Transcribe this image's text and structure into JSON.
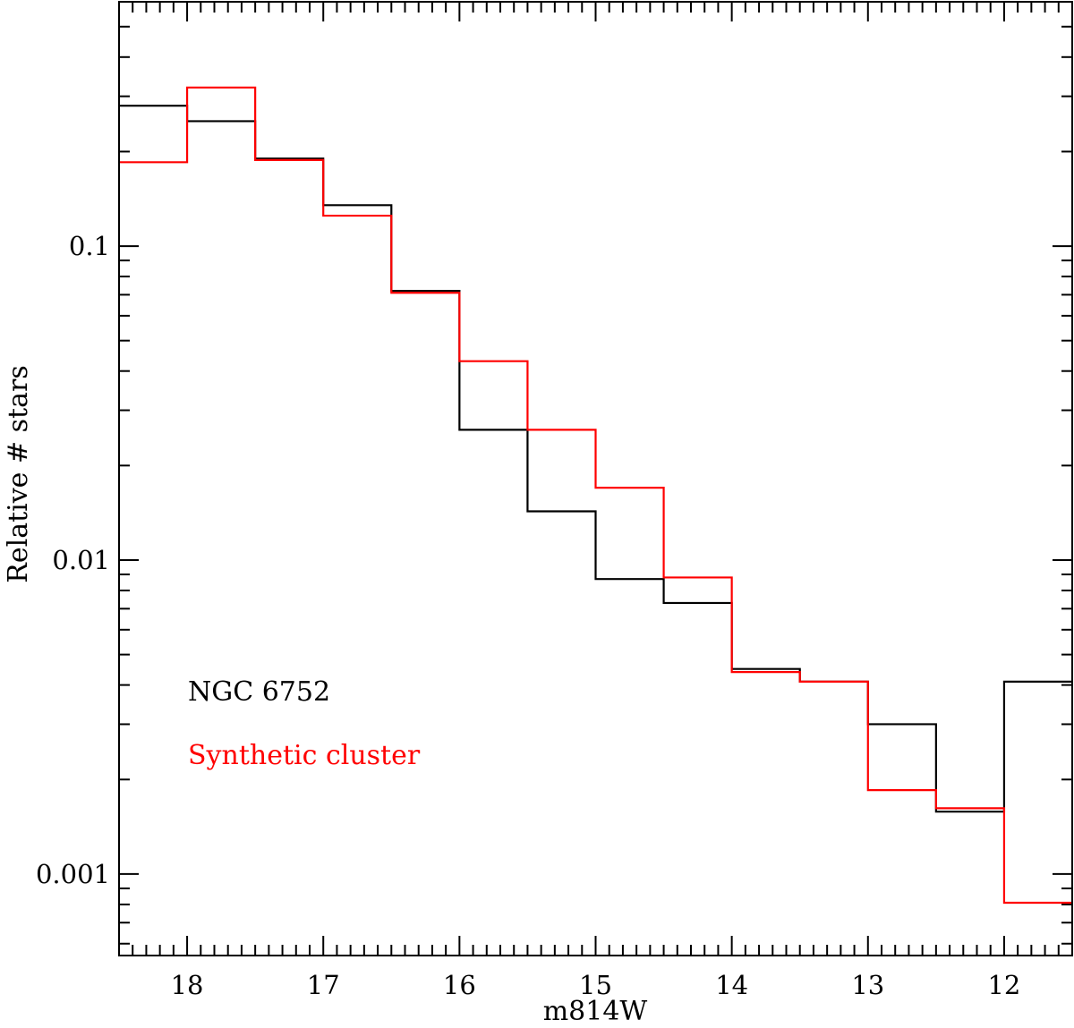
{
  "chart_data": {
    "type": "line",
    "step": true,
    "xlabel": "m814W",
    "ylabel": "Relative # stars",
    "xlim": [
      18.5,
      11.5
    ],
    "ylim": [
      0.00055,
      0.6
    ],
    "yscale": "log",
    "x_ticks": [
      18,
      17,
      16,
      15,
      14,
      13,
      12
    ],
    "x_tick_labels": [
      "18",
      "17",
      "16",
      "15",
      "14",
      "13",
      "12"
    ],
    "y_ticks": [
      0.1,
      0.01,
      0.001
    ],
    "y_tick_labels": [
      "0.1",
      "0.01",
      "0.001"
    ],
    "bin_edges": [
      18.5,
      18.0,
      17.5,
      17.0,
      16.5,
      16.0,
      15.5,
      15.0,
      14.5,
      14.0,
      13.5,
      13.0,
      12.5,
      12.0,
      11.5
    ],
    "series": [
      {
        "name": "NGC 6752",
        "color": "#000000",
        "values": [
          0.28,
          0.25,
          0.19,
          0.135,
          0.072,
          0.026,
          0.0143,
          0.0087,
          0.0073,
          0.0045,
          0.0041,
          0.003,
          0.00158,
          0.0041
        ]
      },
      {
        "name": "Synthetic cluster",
        "color": "#ff0000",
        "values": [
          0.185,
          0.32,
          0.188,
          0.125,
          0.071,
          0.043,
          0.026,
          0.017,
          0.0088,
          0.0044,
          0.0041,
          0.00185,
          0.00162,
          0.00081
        ]
      }
    ],
    "legend": [
      "NGC 6752",
      "Synthetic cluster"
    ],
    "legend_position": "lower-left",
    "grid": false
  }
}
